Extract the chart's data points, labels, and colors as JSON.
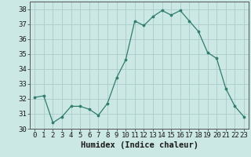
{
  "x": [
    0,
    1,
    2,
    3,
    4,
    5,
    6,
    7,
    8,
    9,
    10,
    11,
    12,
    13,
    14,
    15,
    16,
    17,
    18,
    19,
    20,
    21,
    22,
    23
  ],
  "y": [
    32.1,
    32.2,
    30.4,
    30.8,
    31.5,
    31.5,
    31.3,
    30.9,
    31.7,
    33.4,
    34.6,
    37.2,
    36.9,
    37.5,
    37.9,
    37.6,
    37.9,
    37.2,
    36.5,
    35.1,
    34.7,
    32.7,
    31.5,
    30.8
  ],
  "xlabel": "Humidex (Indice chaleur)",
  "ylim": [
    30,
    38.5
  ],
  "xlim": [
    -0.5,
    23.5
  ],
  "yticks": [
    30,
    31,
    32,
    33,
    34,
    35,
    36,
    37,
    38
  ],
  "xticks": [
    0,
    1,
    2,
    3,
    4,
    5,
    6,
    7,
    8,
    9,
    10,
    11,
    12,
    13,
    14,
    15,
    16,
    17,
    18,
    19,
    20,
    21,
    22,
    23
  ],
  "line_color": "#2e7d6e",
  "marker_color": "#2e7d6e",
  "bg_color": "#cce8e4",
  "grid_color": "#aaccca",
  "label_fontsize": 7.5,
  "tick_fontsize": 6.5
}
